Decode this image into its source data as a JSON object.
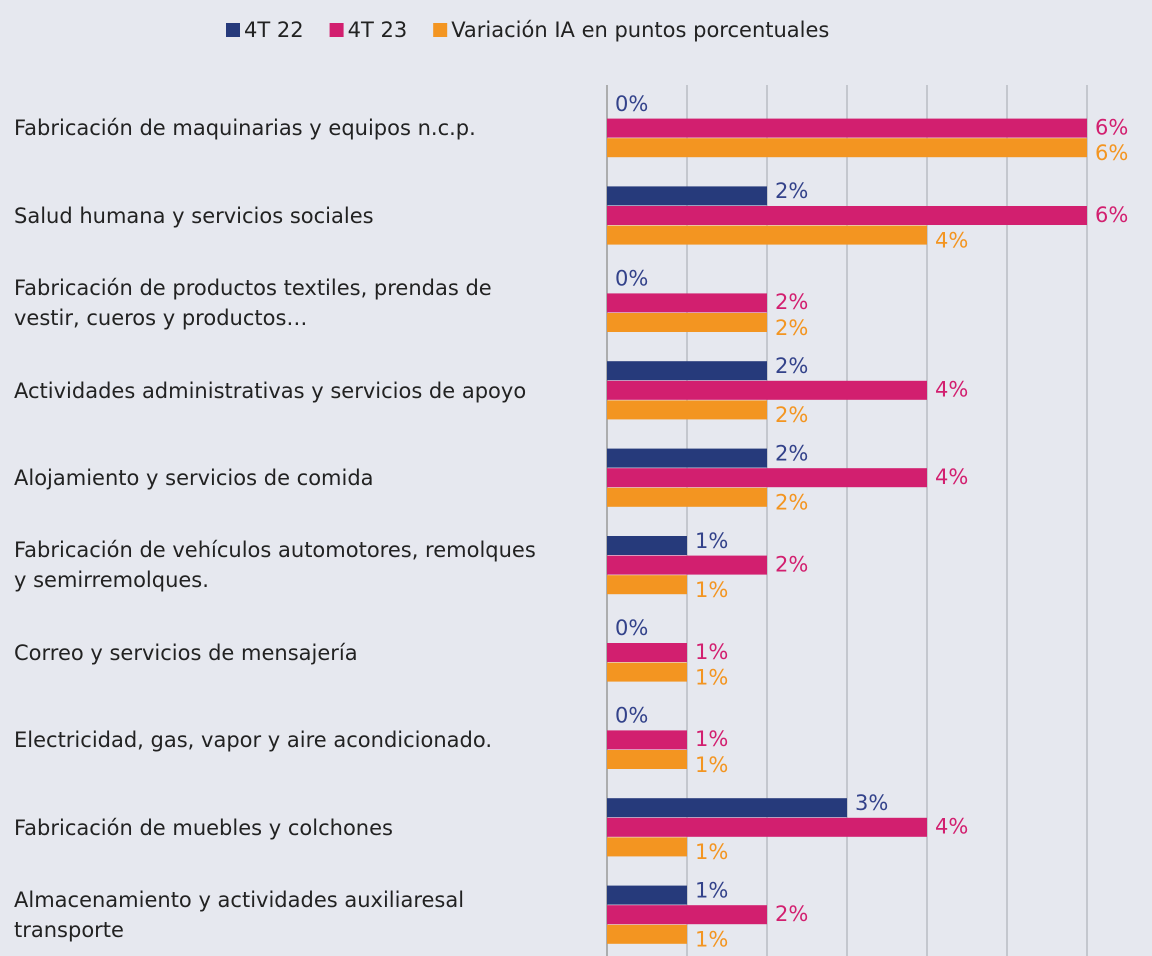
{
  "chart_data": {
    "type": "bar",
    "orientation": "horizontal",
    "categories": [
      "Fabricación de maquinarias y equipos n.c.p.",
      "Salud humana y servicios sociales",
      "Fabricación de productos textiles, prendas de vestir, cueros y productos…",
      "Actividades administrativas y servicios de apoyo",
      "Alojamiento y servicios de comida",
      "Fabricación de vehículos automotores, remolques y semirremolques.",
      "Correo y servicios de mensajería",
      "Electricidad, gas, vapor y aire acondicionado.",
      "Fabricación de muebles y colchones",
      "Almacenamiento y actividades auxiliaresal transporte"
    ],
    "series": [
      {
        "name": "4T 22",
        "color": "#263a7b",
        "label_color": "#33428a",
        "values": [
          0,
          2,
          0,
          2,
          2,
          1,
          0,
          0,
          3,
          1
        ],
        "value_labels": [
          "0%",
          "2%",
          "0%",
          "2%",
          "2%",
          "1%",
          "0%",
          "0%",
          "3%",
          "1%"
        ]
      },
      {
        "name": "4T 23",
        "color": "#d21f6f",
        "label_color": "#d21f6f",
        "values": [
          6,
          6,
          2,
          4,
          4,
          2,
          1,
          1,
          4,
          2
        ],
        "value_labels": [
          "6%",
          "6%",
          "2%",
          "4%",
          "4%",
          "2%",
          "1%",
          "1%",
          "4%",
          "2%"
        ]
      },
      {
        "name": "Variación IA en puntos porcentuales",
        "color": "#f39521",
        "label_color": "#f39521",
        "values": [
          6,
          4,
          2,
          2,
          2,
          1,
          1,
          1,
          1,
          1
        ],
        "value_labels": [
          "6%",
          "4%",
          "2%",
          "2%",
          "2%",
          "1%",
          "1%",
          "1%",
          "1%",
          "1%"
        ]
      }
    ],
    "xlim": [
      0,
      6
    ],
    "xticks": [
      0,
      1,
      2,
      3,
      4,
      5,
      6
    ],
    "grid": true,
    "legend": "top"
  }
}
